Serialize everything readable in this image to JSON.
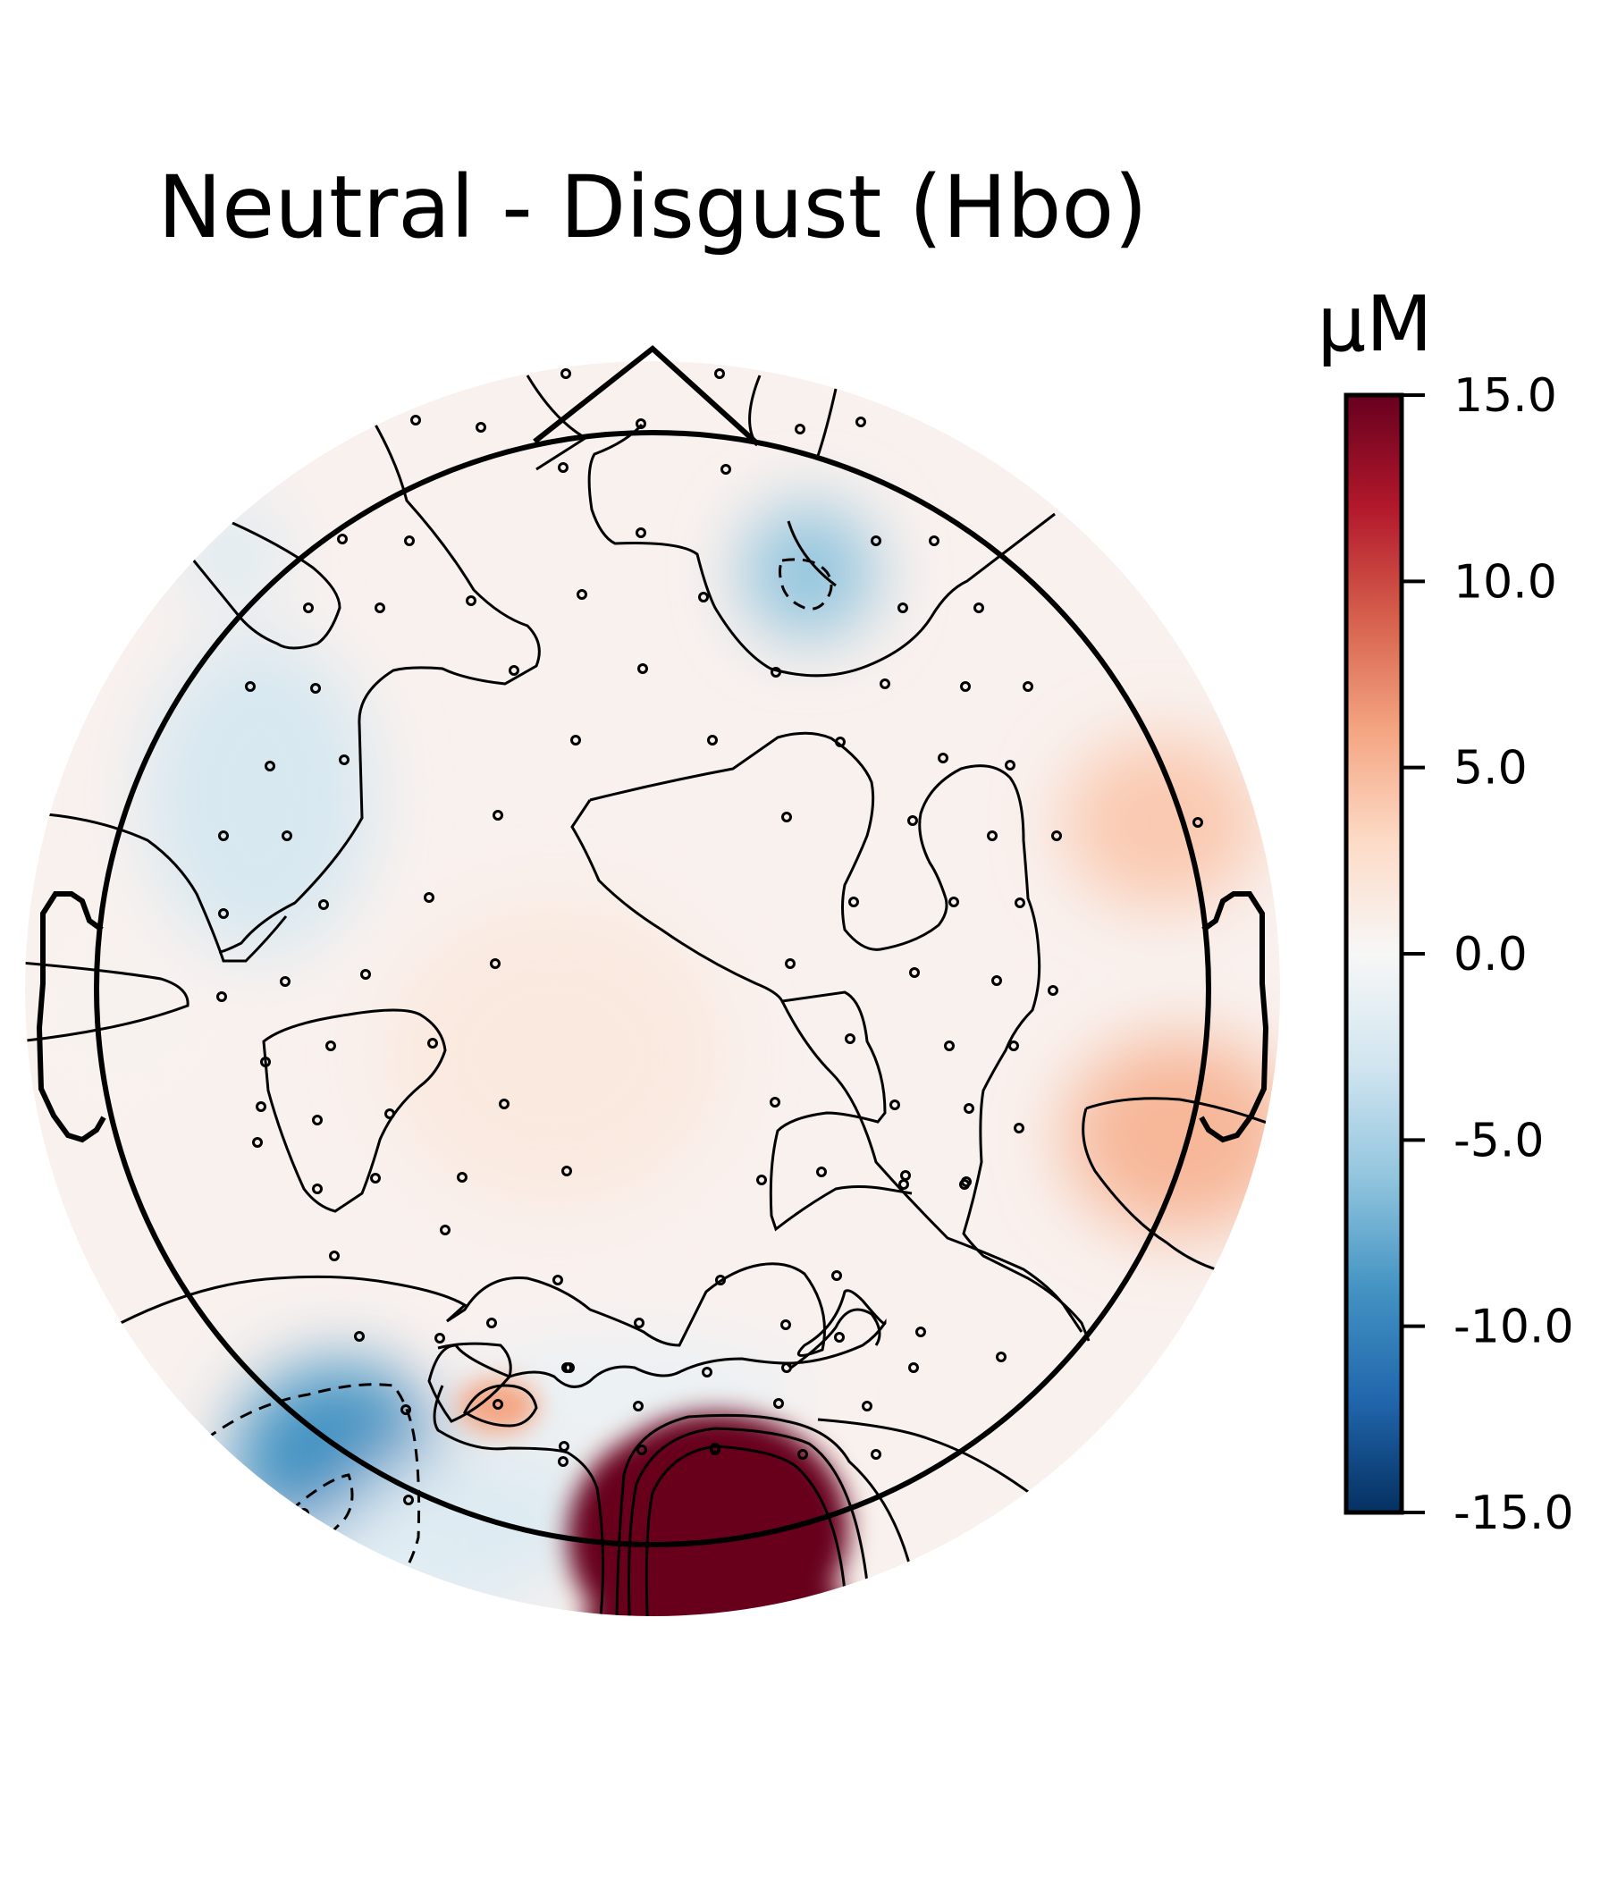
{
  "chart_data": {
    "type": "heatmap",
    "subtype": "topographic-head-map",
    "title": "Neutral - Disgust (Hbo)",
    "colorbar": {
      "unit": "µM",
      "min": -15.0,
      "max": 15.0,
      "ticks": [
        "15.0",
        "10.0",
        "5.0",
        "0.0",
        "-5.0",
        "-10.0",
        "-15.0"
      ],
      "colormap": "RdBu_r",
      "colors": [
        "#053061",
        "#2166ac",
        "#4393c3",
        "#92c5de",
        "#d1e5f0",
        "#f7f7f7",
        "#fddbc7",
        "#f4a582",
        "#d6604d",
        "#b2182b",
        "#67001f"
      ]
    },
    "regions": [
      {
        "label": "posterior-midline positive maximum",
        "value": 15.0
      },
      {
        "label": "left occipital negative minimum",
        "value": -9.0
      },
      {
        "label": "frontal-right negative spot",
        "value": -6.0
      },
      {
        "label": "right temporal positive",
        "value": 5.0
      },
      {
        "label": "right lateral positive",
        "value": 4.0
      },
      {
        "label": "left-occipital small positive",
        "value": 6.0
      },
      {
        "label": "central positive",
        "value": 1.5
      },
      {
        "label": "left frontal negative",
        "value": -2.5
      },
      {
        "label": "left posterior negative band",
        "value": -1.5
      }
    ],
    "grid": false,
    "legend": "colorbar-right"
  }
}
